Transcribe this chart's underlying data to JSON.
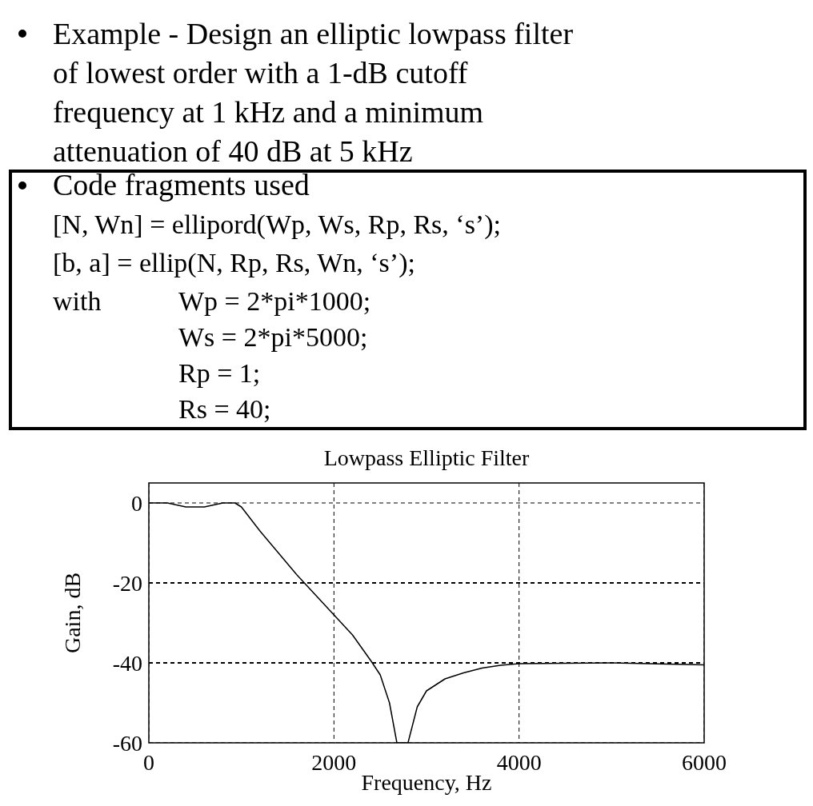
{
  "chart_data": {
    "type": "line",
    "title": "Lowpass Elliptic Filter",
    "xlabel": "Frequency, Hz",
    "ylabel": "Gain, dB",
    "annotations": [
      "Example - Design an elliptic lowpass filter",
      "of lowest order with a 1-dB cutoff",
      "frequency at 1 kHz and a minimum",
      "attenuation of 40 dB at 5 kHz",
      "Code fragments used",
      "[N, Wn] = ellipord(Wp, Ws, Rp, Rs, ‘s’);",
      "[b, a] = ellip(N, Rp, Rs, Wn, ‘s’);",
      "with",
      "Wp = 2*pi*1000;",
      "Ws = 2*pi*5000;",
      "Rp = 1;",
      "Rs = 40;"
    ],
    "x": [
      0,
      200,
      300,
      400,
      600,
      700,
      800,
      930,
      1000,
      1100,
      1200,
      1400,
      1600,
      1800,
      2000,
      2200,
      2400,
      2500,
      2600,
      2680,
      2800,
      2900,
      3000,
      3200,
      3400,
      3600,
      3800,
      4000,
      5000,
      6000
    ],
    "series": [
      {
        "color": "#000000",
        "values": [
          0,
          0,
          -0.5,
          -1,
          -1,
          -0.5,
          0,
          0,
          -1,
          -4,
          -7,
          -12.5,
          -18,
          -23,
          -28,
          -33,
          -39.5,
          -43,
          -50,
          -60,
          -60,
          -51,
          -47,
          -44,
          -42.5,
          -41.3,
          -40.6,
          -40.2,
          -40,
          -40.5
        ]
      }
    ],
    "xlim": [
      0,
      6000
    ],
    "xticks": [
      0,
      2000,
      4000,
      6000
    ],
    "ylim": [
      -60,
      5
    ],
    "yticks": [
      -60,
      -40,
      -20,
      0
    ],
    "grid": true,
    "line_style": "solid",
    "marker": "none"
  }
}
